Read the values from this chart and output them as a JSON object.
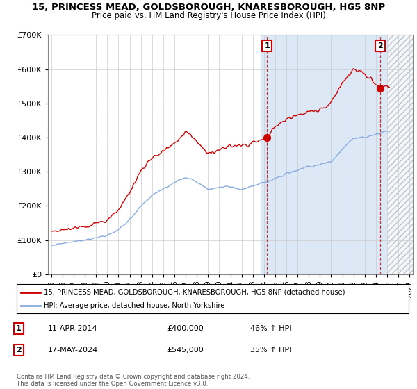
{
  "title": "15, PRINCESS MEAD, GOLDSBOROUGH, KNARESBOROUGH, HG5 8NP",
  "subtitle": "Price paid vs. HM Land Registry's House Price Index (HPI)",
  "ylim": [
    0,
    700000
  ],
  "xlim_start": 1994.7,
  "xlim_end": 2027.3,
  "yticks": [
    0,
    100000,
    200000,
    300000,
    400000,
    500000,
    600000,
    700000
  ],
  "ytick_labels": [
    "£0",
    "£100K",
    "£200K",
    "£300K",
    "£400K",
    "£500K",
    "£600K",
    "£700K"
  ],
  "xticks": [
    1995,
    1996,
    1997,
    1998,
    1999,
    2000,
    2001,
    2002,
    2003,
    2004,
    2005,
    2006,
    2007,
    2008,
    2009,
    2010,
    2011,
    2012,
    2013,
    2014,
    2015,
    2016,
    2017,
    2018,
    2019,
    2020,
    2021,
    2022,
    2023,
    2024,
    2025,
    2026,
    2027
  ],
  "property_color": "#cc0000",
  "hpi_color": "#88aadd",
  "transaction1_x": 2014.28,
  "transaction1_y": 400000,
  "transaction2_x": 2024.38,
  "transaction2_y": 545000,
  "vline_color": "#cc0000",
  "legend_label1": "15, PRINCESS MEAD, GOLDSBOROUGH, KNARESBOROUGH, HG5 8NP (detached house)",
  "legend_label2": "HPI: Average price, detached house, North Yorkshire",
  "table_row1": [
    "1",
    "11-APR-2014",
    "£400,000",
    "46% ↑ HPI"
  ],
  "table_row2": [
    "2",
    "17-MAY-2024",
    "£545,000",
    "35% ↑ HPI"
  ],
  "footer": "Contains HM Land Registry data © Crown copyright and database right 2024.\nThis data is licensed under the Open Government Licence v3.0.",
  "bg_color": "#ffffff",
  "plot_bg_color": "#ffffff",
  "blue_shade_color": "#dce8f5",
  "blue_shade_start": 2013.7,
  "hatch_start": 2025.0,
  "grid_color": "#cccccc"
}
